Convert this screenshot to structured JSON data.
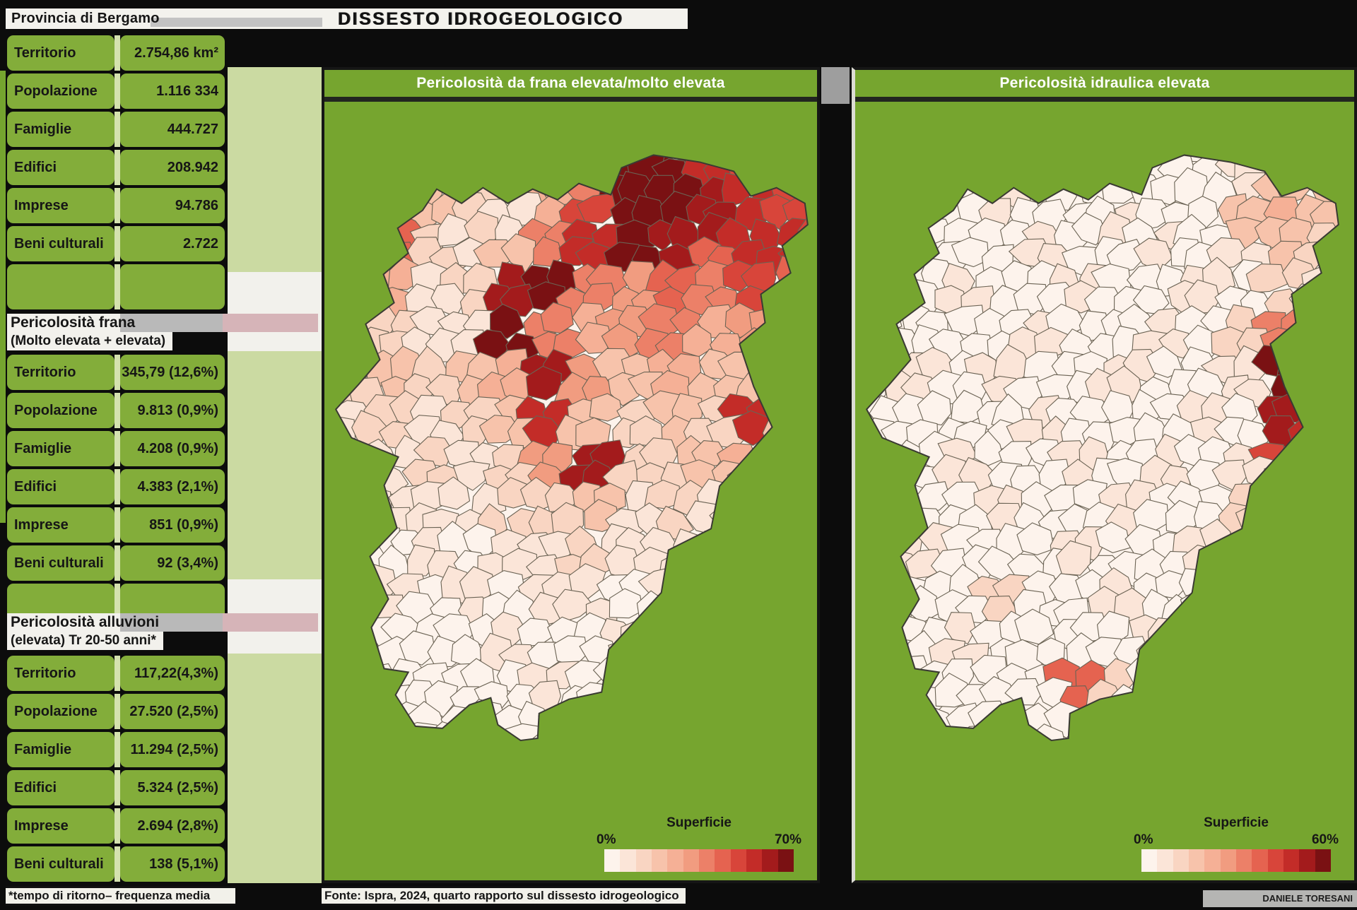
{
  "header": {
    "region_label": "Provincia di Bergamo",
    "title": "DISSESTO IDROGEOLOGICO"
  },
  "sections": [
    {
      "title": "",
      "subtitle": "",
      "rows": [
        {
          "label": "Territorio",
          "value": "2.754,86 km²"
        },
        {
          "label": "Popolazione",
          "value": "1.116 334"
        },
        {
          "label": "Famiglie",
          "value": "444.727"
        },
        {
          "label": "Edifici",
          "value": "208.942"
        },
        {
          "label": "Imprese",
          "value": "94.786"
        },
        {
          "label": "Beni culturali",
          "value": "2.722"
        }
      ]
    },
    {
      "title": "Pericolosità frana",
      "subtitle": "(Molto elevata + elevata)",
      "rows": [
        {
          "label": "Territorio",
          "value": "345,79 (12,6%)"
        },
        {
          "label": "Popolazione",
          "value": "9.813 (0,9%)"
        },
        {
          "label": "Famiglie",
          "value": "4.208 (0,9%)"
        },
        {
          "label": "Edifici",
          "value": "4.383 (2,1%)"
        },
        {
          "label": "Imprese",
          "value": "851 (0,9%)"
        },
        {
          "label": "Beni culturali",
          "value": "92 (3,4%)"
        }
      ]
    },
    {
      "title": "Pericolosità alluvioni",
      "subtitle": "(elevata) Tr 20-50 anni*",
      "rows": [
        {
          "label": "Territorio",
          "value": "117,22(4,3%)"
        },
        {
          "label": "Popolazione",
          "value": "27.520 (2,5%)"
        },
        {
          "label": "Famiglie",
          "value": "11.294 (2,5%)"
        },
        {
          "label": "Edifici",
          "value": "5.324 (2,5%)"
        },
        {
          "label": "Imprese",
          "value": "2.694 (2,8%)"
        },
        {
          "label": "Beni culturali",
          "value": "138 (5,1%)"
        }
      ]
    }
  ],
  "footnote": "*tempo di ritorno– frequenza media",
  "source": "Fonte: Ispra, 2024, quarto rapporto sul dissesto idrogeologico",
  "credit": "DANIELE TORESANI",
  "colors": {
    "panel_green": "#76a52f",
    "cell_green": "#83ad3a",
    "light_band_green": "#cbdaa2",
    "strip_white": "#f2f1ec",
    "cell_border": "#6b6354",
    "outline": "#3a3a33"
  },
  "palette": [
    "#fdf3ec",
    "#fbe5d8",
    "#f9d5c2",
    "#f7c3ab",
    "#f5b096",
    "#f19c80",
    "#ec8068",
    "#e56350",
    "#d8453a",
    "#c32c28",
    "#a31b1c",
    "#7a1113"
  ],
  "maps": [
    {
      "title": "Pericolosità da frana elevata/molto elevata",
      "legend": {
        "title": "Superficie",
        "min": "0%",
        "max": "70%"
      },
      "intensity_grid": [
        [
          0,
          0,
          0,
          1,
          2,
          3,
          6,
          11,
          11,
          9,
          8,
          8
        ],
        [
          0,
          1,
          3,
          2,
          1,
          4,
          8,
          11,
          11,
          10,
          9,
          8
        ],
        [
          5,
          7,
          2,
          1,
          3,
          6,
          9,
          11,
          10,
          7,
          9,
          9
        ],
        [
          6,
          4,
          1,
          2,
          10,
          11,
          6,
          5,
          7,
          6,
          8,
          7
        ],
        [
          3,
          2,
          1,
          1,
          11,
          6,
          4,
          5,
          6,
          4,
          5,
          9
        ],
        [
          2,
          3,
          2,
          3,
          4,
          10,
          5,
          3,
          4,
          3,
          3,
          4
        ],
        [
          1,
          2,
          1,
          2,
          3,
          9,
          3,
          2,
          3,
          2,
          9,
          3
        ],
        [
          1,
          1,
          2,
          1,
          2,
          5,
          10,
          2,
          2,
          3,
          4,
          2
        ],
        [
          0,
          1,
          1,
          1,
          2,
          2,
          3,
          1,
          2,
          1,
          2,
          1
        ],
        [
          0,
          0,
          1,
          0,
          1,
          1,
          2,
          1,
          1,
          1,
          0,
          0
        ],
        [
          0,
          1,
          0,
          1,
          0,
          1,
          1,
          0,
          1,
          0,
          0,
          0
        ],
        [
          0,
          0,
          0,
          0,
          1,
          0,
          0,
          1,
          0,
          0,
          0,
          0
        ],
        [
          0,
          0,
          0,
          0,
          0,
          1,
          0,
          0,
          0,
          0,
          0,
          0
        ],
        [
          0,
          0,
          0,
          0,
          0,
          0,
          0,
          0,
          0,
          0,
          0,
          0
        ]
      ]
    },
    {
      "title": "Pericolosità idraulica elevata",
      "legend": {
        "title": "Superficie",
        "min": "0%",
        "max": "60%"
      },
      "intensity_grid": [
        [
          0,
          0,
          0,
          0,
          0,
          0,
          0,
          0,
          0,
          1,
          3,
          3
        ],
        [
          0,
          0,
          0,
          1,
          0,
          0,
          1,
          0,
          0,
          3,
          4,
          3
        ],
        [
          0,
          1,
          0,
          0,
          1,
          0,
          0,
          1,
          0,
          1,
          3,
          2
        ],
        [
          0,
          0,
          1,
          0,
          0,
          1,
          0,
          0,
          1,
          0,
          2,
          1
        ],
        [
          0,
          0,
          0,
          0,
          1,
          0,
          0,
          1,
          0,
          2,
          6,
          0
        ],
        [
          0,
          1,
          0,
          1,
          0,
          0,
          1,
          0,
          0,
          1,
          11,
          0
        ],
        [
          0,
          0,
          0,
          0,
          1,
          0,
          0,
          0,
          1,
          0,
          10,
          9
        ],
        [
          0,
          0,
          1,
          0,
          0,
          1,
          0,
          1,
          0,
          1,
          8,
          8
        ],
        [
          0,
          0,
          0,
          1,
          0,
          0,
          1,
          0,
          0,
          2,
          7,
          0
        ],
        [
          0,
          1,
          0,
          0,
          0,
          1,
          0,
          0,
          1,
          0,
          2,
          0
        ],
        [
          0,
          0,
          0,
          2,
          0,
          0,
          1,
          0,
          0,
          1,
          0,
          0
        ],
        [
          0,
          0,
          1,
          0,
          0,
          0,
          0,
          1,
          0,
          0,
          0,
          0
        ],
        [
          0,
          0,
          0,
          0,
          0,
          7,
          2,
          0,
          0,
          0,
          0,
          0
        ],
        [
          0,
          0,
          0,
          0,
          0,
          0,
          0,
          0,
          0,
          0,
          0,
          0
        ]
      ]
    }
  ]
}
